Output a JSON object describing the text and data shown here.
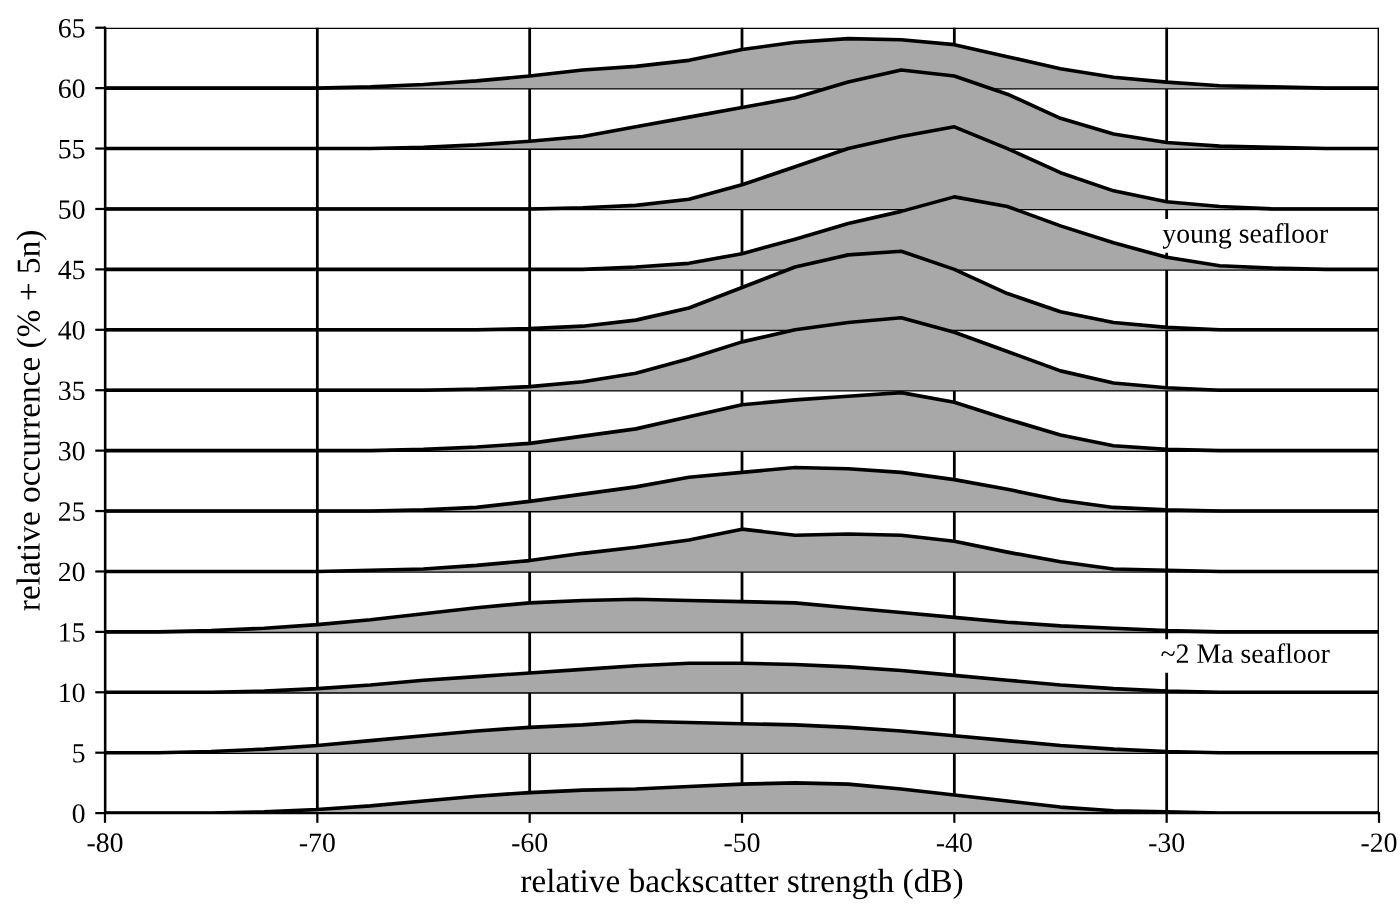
{
  "chart_data": {
    "type": "area",
    "xlabel": "relative backscatter strength (dB)",
    "ylabel": "relative occurrence (% + 5n)",
    "x": [
      -80,
      -77.5,
      -75,
      -72.5,
      -70,
      -67.5,
      -65,
      -62.5,
      -60,
      -57.5,
      -55,
      -52.5,
      -50,
      -47.5,
      -45,
      -42.5,
      -40,
      -37.5,
      -35,
      -32.5,
      -30,
      -27.5,
      -25,
      -22.5,
      -20
    ],
    "xlim": [
      -80,
      -20
    ],
    "xticks": [
      -80,
      -70,
      -60,
      -50,
      -40,
      -30,
      -20
    ],
    "ylim": [
      0,
      65
    ],
    "yticks": [
      0,
      5,
      10,
      15,
      20,
      25,
      30,
      35,
      40,
      45,
      50,
      55,
      60,
      65
    ],
    "grid": true,
    "series": [
      {
        "color": "#a8a8a8",
        "values": [
          0,
          0,
          0,
          0.1,
          0.3,
          0.6,
          1.0,
          1.4,
          1.7,
          1.9,
          2.0,
          2.2,
          2.4,
          2.5,
          2.4,
          2.0,
          1.5,
          1.0,
          0.5,
          0.2,
          0.1,
          0,
          0,
          0,
          0
        ]
      },
      {
        "color": "#a8a8a8",
        "values": [
          5,
          5,
          5.1,
          5.3,
          5.6,
          6.0,
          6.4,
          6.8,
          7.1,
          7.3,
          7.6,
          7.5,
          7.4,
          7.3,
          7.1,
          6.8,
          6.4,
          6.0,
          5.6,
          5.3,
          5.1,
          5,
          5,
          5,
          5
        ]
      },
      {
        "color": "#a8a8a8",
        "values": [
          10,
          10,
          10,
          10.1,
          10.3,
          10.6,
          11.0,
          11.3,
          11.6,
          11.9,
          12.2,
          12.4,
          12.4,
          12.3,
          12.1,
          11.8,
          11.4,
          11.0,
          10.6,
          10.3,
          10.1,
          10,
          10,
          10,
          10
        ]
      },
      {
        "color": "#a8a8a8",
        "values": [
          15,
          15,
          15.1,
          15.3,
          15.6,
          16.0,
          16.5,
          17.0,
          17.4,
          17.6,
          17.7,
          17.6,
          17.5,
          17.4,
          17.0,
          16.6,
          16.2,
          15.8,
          15.5,
          15.3,
          15.1,
          15,
          15,
          15,
          15
        ]
      },
      {
        "color": "#a8a8a8",
        "values": [
          20,
          20,
          20,
          20,
          20,
          20.1,
          20.2,
          20.5,
          20.9,
          21.5,
          22.0,
          22.6,
          23.5,
          23.0,
          23.1,
          23.0,
          22.5,
          21.6,
          20.8,
          20.2,
          20.1,
          20,
          20,
          20,
          20
        ]
      },
      {
        "color": "#a8a8a8",
        "values": [
          25,
          25,
          25,
          25,
          25,
          25,
          25.1,
          25.3,
          25.8,
          26.4,
          27.0,
          27.8,
          28.2,
          28.6,
          28.5,
          28.2,
          27.6,
          26.8,
          25.9,
          25.3,
          25.1,
          25,
          25,
          25,
          25
        ]
      },
      {
        "color": "#a8a8a8",
        "values": [
          30,
          30,
          30,
          30,
          30,
          30,
          30.1,
          30.3,
          30.6,
          31.2,
          31.8,
          32.8,
          33.8,
          34.2,
          34.5,
          34.8,
          34.0,
          32.6,
          31.3,
          30.4,
          30.1,
          30,
          30,
          30,
          30
        ]
      },
      {
        "color": "#a8a8a8",
        "values": [
          35,
          35,
          35,
          35,
          35,
          35,
          35,
          35.1,
          35.3,
          35.7,
          36.4,
          37.6,
          39.0,
          40.0,
          40.6,
          41.0,
          39.8,
          38.2,
          36.6,
          35.6,
          35.2,
          35,
          35,
          35,
          35
        ]
      },
      {
        "color": "#a8a8a8",
        "values": [
          40,
          40,
          40,
          40,
          40,
          40,
          40,
          40,
          40.1,
          40.3,
          40.8,
          41.8,
          43.5,
          45.2,
          46.2,
          46.5,
          45.0,
          43.0,
          41.5,
          40.6,
          40.2,
          40,
          40,
          40,
          40
        ]
      },
      {
        "color": "#a8a8a8",
        "values": [
          45,
          45,
          45,
          45,
          45,
          45,
          45,
          45,
          45,
          45,
          45.2,
          45.5,
          46.3,
          47.5,
          48.8,
          49.8,
          51.0,
          50.2,
          48.6,
          47.2,
          46.0,
          45.3,
          45.1,
          45,
          45
        ]
      },
      {
        "color": "#a8a8a8",
        "values": [
          50,
          50,
          50,
          50,
          50,
          50,
          50,
          50,
          50,
          50.1,
          50.3,
          50.8,
          52.0,
          53.5,
          55.0,
          56.0,
          56.8,
          55.0,
          53.0,
          51.5,
          50.6,
          50.2,
          50,
          50,
          50
        ]
      },
      {
        "color": "#a8a8a8",
        "values": [
          55,
          55,
          55,
          55,
          55,
          55,
          55.1,
          55.3,
          55.6,
          56.0,
          56.8,
          57.6,
          58.4,
          59.2,
          60.5,
          61.5,
          61.0,
          59.5,
          57.5,
          56.2,
          55.5,
          55.2,
          55.1,
          55,
          55
        ]
      },
      {
        "color": "#a8a8a8",
        "values": [
          60,
          60,
          60,
          60,
          60,
          60.1,
          60.3,
          60.6,
          61.0,
          61.5,
          61.8,
          62.3,
          63.2,
          63.8,
          64.1,
          64.0,
          63.6,
          62.6,
          61.6,
          60.9,
          60.5,
          60.2,
          60.1,
          60,
          60
        ]
      }
    ],
    "annotations": [
      "young seafloor",
      "~2 Ma seafloor"
    ]
  }
}
